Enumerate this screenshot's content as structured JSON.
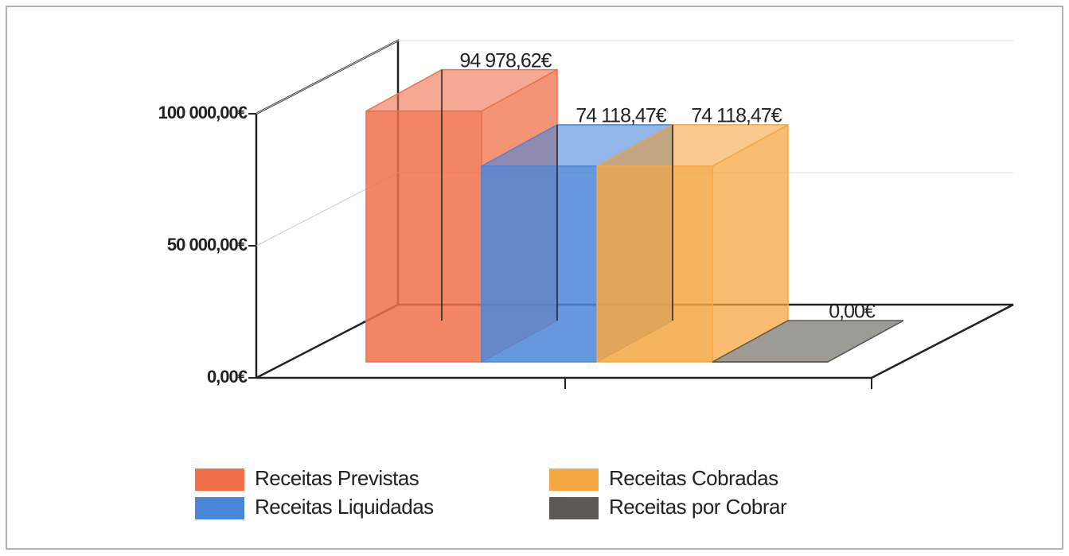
{
  "chart_data": {
    "type": "bar",
    "categories": [
      null
    ],
    "series": [
      {
        "name": "Receitas Previstas",
        "color": "#f0704a",
        "values": [
          94978.62
        ],
        "value_labels": [
          "94 978,62€"
        ]
      },
      {
        "name": "Receitas Liquidadas",
        "color": "#4a86d8",
        "values": [
          74118.47
        ],
        "value_labels": [
          "74 118,47€"
        ]
      },
      {
        "name": "Receitas Cobradas",
        "color": "#f5a742",
        "values": [
          74118.47
        ],
        "value_labels": [
          "74 118,47€"
        ]
      },
      {
        "name": "Receitas por Cobrar",
        "color": "#5e5852",
        "values": [
          0
        ],
        "value_labels": [
          "0,00€"
        ]
      }
    ],
    "ylim": [
      0,
      100000
    ],
    "yticks": [
      {
        "value": 0,
        "label": "0,00€"
      },
      {
        "value": 50000,
        "label": "50 000,00€"
      },
      {
        "value": 100000,
        "label": "100 000,00€"
      }
    ],
    "grid": true,
    "legend": "bottom"
  }
}
